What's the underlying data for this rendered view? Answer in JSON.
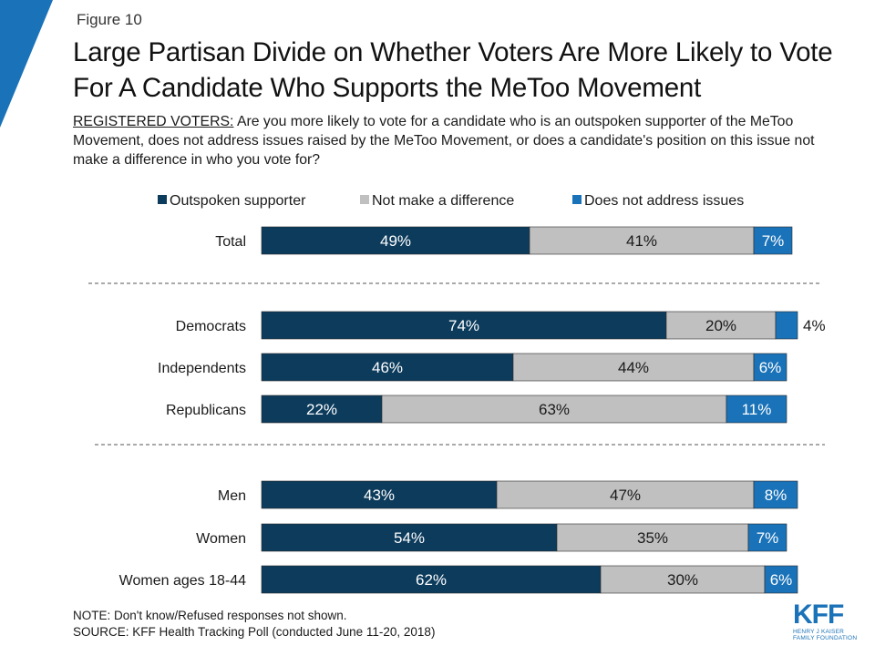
{
  "figure_label": "Figure 10",
  "title": "Large Partisan Divide on Whether Voters Are More Likely to Vote For A Candidate Who Supports the MeToo Movement",
  "subtitle_lead": "REGISTERED VOTERS:",
  "subtitle_rest": " Are you more likely to vote for a candidate who is an outspoken supporter of the MeToo Movement, does not address issues raised by the MeToo Movement, or does a candidate's position on this issue not make a difference in who you vote for?",
  "colors": {
    "accent": "#1a72b8",
    "navy": "#0c3b5c",
    "gray": "#c0c0c0",
    "blue": "#1a72b8"
  },
  "chart_data": {
    "type": "bar",
    "orientation": "horizontal",
    "stacked": true,
    "unit": "%",
    "xlim": [
      0,
      100
    ],
    "legend_position": "top",
    "categories": [
      "Total",
      "Democrats",
      "Independents",
      "Republicans",
      "Men",
      "Women",
      "Women ages 18-44"
    ],
    "groups": [
      [
        "Total"
      ],
      [
        "Democrats",
        "Independents",
        "Republicans"
      ],
      [
        "Men",
        "Women",
        "Women ages 18-44"
      ]
    ],
    "series": [
      {
        "name": "Outspoken supporter",
        "color": "#0c3b5c",
        "label_color": "#ffffff",
        "values": [
          49,
          74,
          46,
          22,
          43,
          54,
          62
        ]
      },
      {
        "name": "Not make a difference",
        "color": "#c0c0c0",
        "label_color": "#1a1a1a",
        "values": [
          41,
          20,
          44,
          63,
          47,
          35,
          30
        ]
      },
      {
        "name": "Does not address issues",
        "color": "#1a72b8",
        "label_color": "#ffffff",
        "values": [
          7,
          4,
          6,
          11,
          8,
          7,
          6
        ]
      }
    ]
  },
  "footer": {
    "note": "NOTE: Don't know/Refused responses not shown.",
    "source": "SOURCE: KFF Health Tracking Poll (conducted June 11-20, 2018)"
  },
  "logo": {
    "mark": "KFF",
    "line1": "HENRY J KAISER",
    "line2": "FAMILY FOUNDATION"
  }
}
